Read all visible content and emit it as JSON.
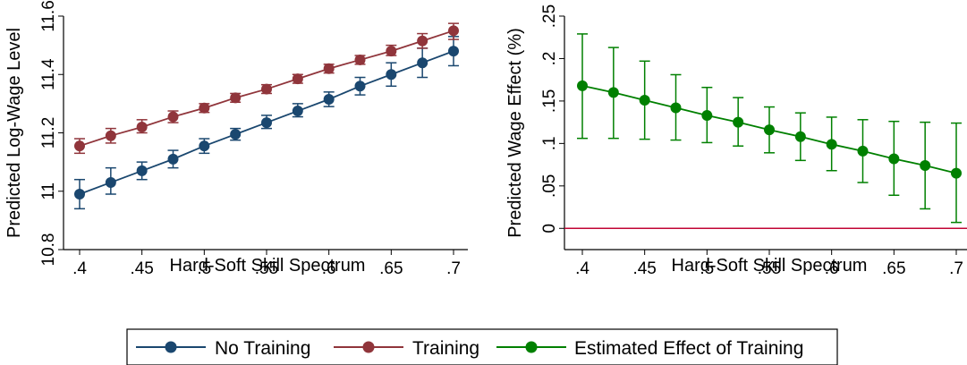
{
  "chart_data": [
    {
      "type": "line",
      "title": "",
      "xlabel": "Hard-Soft Skill Spectrum",
      "ylabel": "Predicted Log-Wage Level",
      "xlim": [
        0.4,
        0.7
      ],
      "ylim": [
        10.8,
        11.6
      ],
      "x_ticks": [
        ".4",
        ".45",
        ".5",
        ".55",
        ".6",
        ".65",
        ".7"
      ],
      "y_ticks": [
        "10.8",
        "11",
        "11.2",
        "11.4",
        "11.6"
      ],
      "grid": false,
      "x": [
        0.4,
        0.425,
        0.45,
        0.475,
        0.5,
        0.525,
        0.55,
        0.575,
        0.6,
        0.625,
        0.65,
        0.675,
        0.7
      ],
      "series": [
        {
          "name": "No Training",
          "color": "#1a476f",
          "values": [
            10.99,
            11.03,
            11.07,
            11.11,
            11.155,
            11.195,
            11.235,
            11.275,
            11.315,
            11.36,
            11.4,
            11.44,
            11.48
          ],
          "lower": [
            10.94,
            10.99,
            11.04,
            11.08,
            11.13,
            11.175,
            11.215,
            11.255,
            11.29,
            11.33,
            11.36,
            11.39,
            11.43
          ],
          "upper": [
            11.04,
            11.08,
            11.1,
            11.14,
            11.18,
            11.215,
            11.26,
            11.3,
            11.34,
            11.39,
            11.44,
            11.49,
            11.53
          ]
        },
        {
          "name": "Training",
          "color": "#90353b",
          "values": [
            11.155,
            11.19,
            11.22,
            11.255,
            11.285,
            11.32,
            11.35,
            11.385,
            11.42,
            11.45,
            11.48,
            11.515,
            11.55
          ],
          "lower": [
            11.13,
            11.165,
            11.2,
            11.235,
            11.27,
            11.305,
            11.335,
            11.37,
            11.405,
            11.435,
            11.465,
            11.49,
            11.52
          ],
          "upper": [
            11.18,
            11.215,
            11.245,
            11.275,
            11.3,
            11.335,
            11.365,
            11.4,
            11.435,
            11.465,
            11.5,
            11.54,
            11.575
          ]
        }
      ]
    },
    {
      "type": "line",
      "title": "",
      "xlabel": "Hard-Soft Skill Spectrum",
      "ylabel": "Predicted Wage Effect (%)",
      "xlim": [
        0.4,
        0.7
      ],
      "ylim": [
        -0.025,
        0.25
      ],
      "x_ticks": [
        ".4",
        ".45",
        ".5",
        ".55",
        ".6",
        ".65",
        ".7"
      ],
      "y_ticks": [
        "0",
        ".05",
        ".1",
        ".15",
        ".2",
        ".25"
      ],
      "grid": false,
      "reference_line": {
        "y": 0,
        "color": "#c10534"
      },
      "x": [
        0.4,
        0.425,
        0.45,
        0.475,
        0.5,
        0.525,
        0.55,
        0.575,
        0.6,
        0.625,
        0.65,
        0.675,
        0.7
      ],
      "series": [
        {
          "name": "Estimated Effect of Training",
          "color": "#008000",
          "values": [
            0.168,
            0.16,
            0.151,
            0.142,
            0.133,
            0.125,
            0.116,
            0.108,
            0.099,
            0.091,
            0.082,
            0.074,
            0.065
          ],
          "lower": [
            0.106,
            0.106,
            0.105,
            0.104,
            0.101,
            0.097,
            0.089,
            0.08,
            0.068,
            0.054,
            0.039,
            0.023,
            0.007
          ],
          "upper": [
            0.229,
            0.213,
            0.197,
            0.181,
            0.166,
            0.154,
            0.143,
            0.136,
            0.131,
            0.128,
            0.126,
            0.125,
            0.124
          ]
        }
      ]
    }
  ],
  "legend": {
    "placement": "bottom",
    "entries": [
      {
        "label": "No Training",
        "color": "#1a476f"
      },
      {
        "label": "Training",
        "color": "#90353b"
      },
      {
        "label": "Estimated Effect of Training",
        "color": "#008000"
      }
    ]
  }
}
